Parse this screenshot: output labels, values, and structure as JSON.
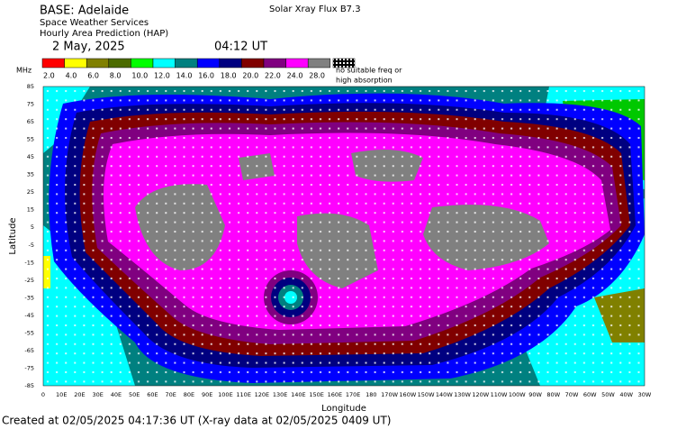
{
  "header": {
    "base": "BASE: Adelaide",
    "service": "Space Weather Services",
    "product": "Hourly Area Prediction (HAP)",
    "date": "2 May, 2025",
    "time": "04:12 UT",
    "flux": "Solar Xray Flux B7.3"
  },
  "legend": {
    "unit": "MHz",
    "items": [
      {
        "label": "2.0",
        "color": "#ff0000"
      },
      {
        "label": "4.0",
        "color": "#ffff00"
      },
      {
        "label": "6.0",
        "color": "#808000"
      },
      {
        "label": "8.0",
        "color": "#4b6b00"
      },
      {
        "label": "10.0",
        "color": "#00ff00"
      },
      {
        "label": "12.0",
        "color": "#00ffff"
      },
      {
        "label": "14.0",
        "color": "#008080"
      },
      {
        "label": "16.0",
        "color": "#0000ff"
      },
      {
        "label": "18.0",
        "color": "#000080"
      },
      {
        "label": "20.0",
        "color": "#800000"
      },
      {
        "label": "22.0",
        "color": "#800080"
      },
      {
        "label": "24.0",
        "color": "#ff00ff"
      },
      {
        "label": "28.0",
        "color": "#808080"
      }
    ],
    "no_freq": [
      "no suitable freq or",
      "high absorption"
    ]
  },
  "map": {
    "y_title": "Latitude",
    "x_title": "Longitude",
    "latitude_labels": [
      85,
      75,
      65,
      55,
      45,
      35,
      25,
      15,
      5,
      -5,
      -15,
      -25,
      -35,
      -45,
      -55,
      -65,
      -75,
      -85
    ],
    "longitude_labels": [
      "0",
      "10E",
      "20E",
      "30E",
      "40E",
      "50E",
      "60E",
      "70E",
      "80E",
      "90E",
      "100E",
      "110E",
      "120E",
      "130E",
      "140E",
      "150E",
      "160E",
      "170E",
      "180",
      "170W",
      "160W",
      "150W",
      "140W",
      "130W",
      "120W",
      "110W",
      "100W",
      "90W",
      "80W",
      "70W",
      "60W",
      "50W",
      "40W",
      "30W"
    ]
  },
  "footer": "Created at 02/05/2025 04:17:36 UT (X-ray data at 02/05/2025 0409 UT)"
}
